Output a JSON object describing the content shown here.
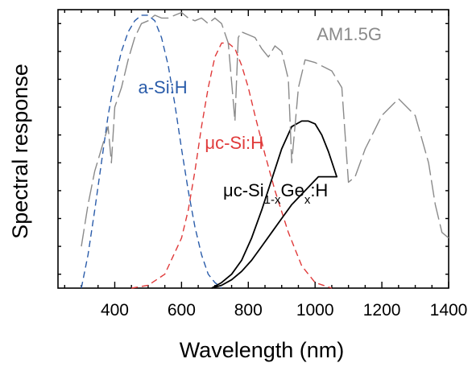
{
  "chart_data": {
    "type": "line",
    "title": "",
    "xlabel": "Wavelength (nm)",
    "ylabel": "Spectral response",
    "xlim": [
      230,
      1400
    ],
    "ylim": [
      0,
      1.0
    ],
    "grid": false,
    "legend": "none",
    "x_ticks": [
      400,
      600,
      800,
      1000,
      1200,
      1400
    ],
    "x_tick_labels": [
      "400",
      "600",
      "800",
      "1000",
      "1200",
      "1400"
    ],
    "series": [
      {
        "name": "a-Si:H",
        "color": "#2a5caa",
        "dash": "dashed",
        "x": [
          300,
          320,
          340,
          360,
          380,
          400,
          420,
          440,
          460,
          480,
          500,
          520,
          540,
          560,
          580,
          600,
          620,
          640,
          660,
          680,
          700,
          720
        ],
        "y": [
          0.0,
          0.12,
          0.28,
          0.45,
          0.62,
          0.75,
          0.85,
          0.92,
          0.96,
          0.98,
          0.98,
          0.96,
          0.9,
          0.8,
          0.66,
          0.5,
          0.35,
          0.22,
          0.12,
          0.05,
          0.02,
          0.0
        ]
      },
      {
        "name": "μc-Si:H",
        "color": "#e03a3a",
        "dash": "dashed",
        "x": [
          450,
          500,
          550,
          600,
          620,
          640,
          660,
          680,
          700,
          720,
          740,
          760,
          780,
          800,
          820,
          850,
          880,
          920,
          960,
          1000,
          1050
        ],
        "y": [
          0.0,
          0.01,
          0.05,
          0.18,
          0.28,
          0.42,
          0.58,
          0.72,
          0.83,
          0.88,
          0.88,
          0.86,
          0.8,
          0.72,
          0.62,
          0.48,
          0.35,
          0.2,
          0.08,
          0.02,
          0.0
        ]
      },
      {
        "name": "μc-Si1-xGex:H",
        "color": "#000000",
        "dash": "solid",
        "x": [
          690,
          720,
          750,
          780,
          810,
          840,
          870,
          900,
          930,
          960,
          980,
          1000,
          1020,
          1040,
          1065,
          1040,
          1010,
          970,
          930,
          900,
          870,
          840,
          810,
          780,
          750,
          720,
          690
        ],
        "y": [
          0.0,
          0.02,
          0.05,
          0.1,
          0.18,
          0.28,
          0.39,
          0.5,
          0.58,
          0.6,
          0.6,
          0.59,
          0.55,
          0.49,
          0.4,
          0.4,
          0.4,
          0.35,
          0.3,
          0.25,
          0.2,
          0.15,
          0.1,
          0.06,
          0.03,
          0.01,
          0.0
        ]
      },
      {
        "name": "AM1.5G",
        "color": "#8a8a8a",
        "dash": "longdash",
        "x": [
          300,
          320,
          340,
          360,
          380,
          390,
          400,
          420,
          440,
          460,
          480,
          500,
          520,
          540,
          560,
          580,
          600,
          620,
          640,
          660,
          680,
          700,
          720,
          740,
          760,
          770,
          780,
          800,
          820,
          840,
          860,
          880,
          900,
          920,
          930,
          950,
          970,
          1000,
          1050,
          1080,
          1100,
          1120,
          1150,
          1200,
          1250,
          1300,
          1340,
          1360,
          1380,
          1400
        ],
        "y": [
          0.15,
          0.3,
          0.42,
          0.5,
          0.58,
          0.45,
          0.65,
          0.72,
          0.82,
          0.9,
          0.95,
          0.96,
          0.98,
          0.97,
          0.97,
          0.98,
          0.99,
          0.97,
          0.96,
          0.97,
          0.95,
          0.97,
          0.95,
          0.88,
          0.6,
          0.9,
          0.92,
          0.91,
          0.9,
          0.86,
          0.83,
          0.87,
          0.85,
          0.75,
          0.45,
          0.72,
          0.82,
          0.81,
          0.78,
          0.72,
          0.38,
          0.4,
          0.5,
          0.62,
          0.68,
          0.62,
          0.45,
          0.3,
          0.2,
          0.18
        ]
      }
    ],
    "labels": [
      {
        "text": "AM1.5G",
        "series": "AM1.5G",
        "x": 1005,
        "y": 0.89
      },
      {
        "text": "a-Si:H",
        "series": "a-Si:H",
        "x": 470,
        "y": 0.7
      },
      {
        "text": "μc-Si:H",
        "series": "μc-Si:H",
        "x": 670,
        "y": 0.5
      }
    ]
  },
  "ge_label": {
    "prefix": "μc-Si",
    "sub1": "1-x",
    "mid": "Ge",
    "sub2": "x",
    "suffix": ":H",
    "x": 990,
    "y": 0.33
  }
}
